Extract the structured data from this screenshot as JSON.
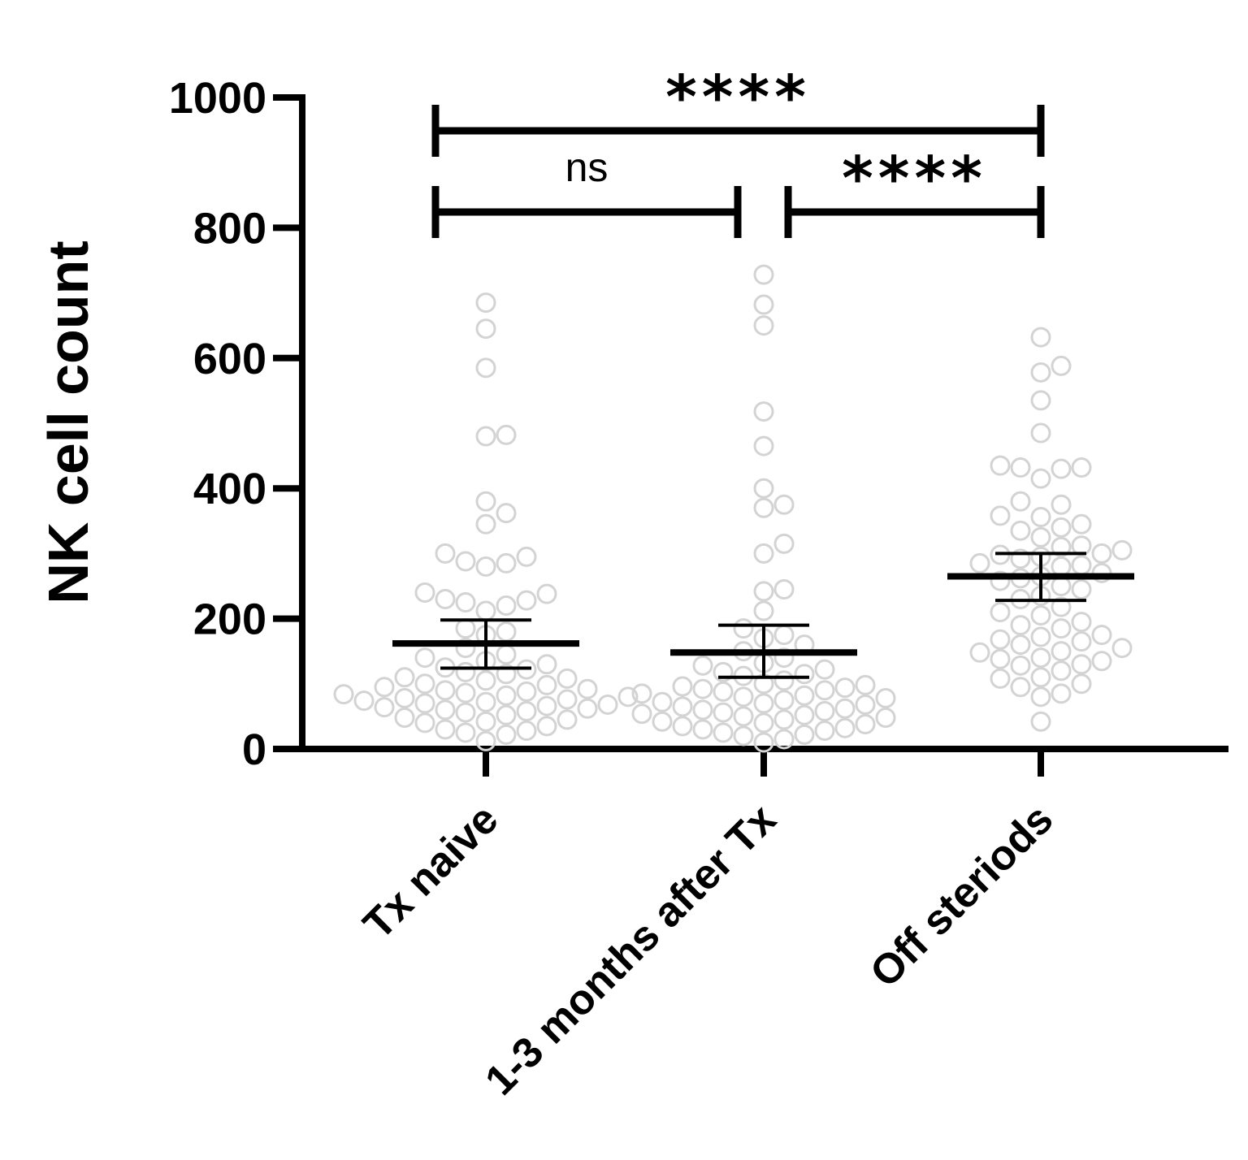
{
  "chart_data": {
    "type": "scatter",
    "ylabel": "NK cell count",
    "xlabel": "",
    "ylim": [
      0,
      1000
    ],
    "yticks": [
      0,
      200,
      400,
      600,
      800,
      1000
    ],
    "categories": [
      "Tx naive",
      "1-3 months after Tx",
      "Off steriods"
    ],
    "point_color": "#d3d3d3",
    "line_color": "#000000",
    "groups": [
      {
        "category": "Tx naive",
        "mean": 162,
        "ci": [
          124,
          198
        ],
        "points": [
          685,
          645,
          585,
          482,
          480,
          380,
          362,
          345,
          300,
          295,
          288,
          285,
          280,
          240,
          238,
          230,
          228,
          225,
          220,
          212,
          185,
          180,
          175,
          155,
          145,
          140,
          135,
          130,
          125,
          122,
          118,
          115,
          110,
          108,
          105,
          100,
          98,
          95,
          92,
          90,
          88,
          86,
          84,
          82,
          80,
          78,
          76,
          74,
          72,
          70,
          68,
          66,
          64,
          62,
          60,
          58,
          56,
          52,
          48,
          45,
          42,
          40,
          35,
          30,
          28,
          25,
          22,
          12
        ]
      },
      {
        "category": "1-3 months after Tx",
        "mean": 148,
        "ci": [
          110,
          190
        ],
        "points": [
          728,
          682,
          650,
          518,
          465,
          400,
          375,
          370,
          315,
          300,
          245,
          242,
          212,
          185,
          175,
          170,
          160,
          150,
          140,
          132,
          128,
          122,
          118,
          115,
          112,
          105,
          100,
          98,
          96,
          94,
          92,
          90,
          88,
          85,
          82,
          80,
          78,
          75,
          72,
          70,
          68,
          65,
          62,
          60,
          58,
          56,
          54,
          52,
          50,
          48,
          45,
          42,
          40,
          38,
          35,
          32,
          30,
          28,
          25,
          22,
          20,
          15,
          10
        ]
      },
      {
        "category": "Off steriods",
        "mean": 265,
        "ci": [
          228,
          300
        ],
        "points": [
          632,
          588,
          578,
          535,
          485,
          435,
          432,
          430,
          432,
          415,
          380,
          375,
          358,
          356,
          345,
          340,
          335,
          325,
          312,
          310,
          305,
          300,
          298,
          295,
          292,
          285,
          282,
          280,
          270,
          265,
          262,
          258,
          250,
          245,
          235,
          230,
          218,
          210,
          205,
          195,
          190,
          185,
          175,
          172,
          168,
          165,
          160,
          155,
          150,
          148,
          140,
          138,
          135,
          130,
          128,
          120,
          110,
          108,
          100,
          95,
          85,
          80,
          42
        ]
      }
    ],
    "comparisons": [
      {
        "from": 0,
        "to": 2,
        "label": "****",
        "level": 2
      },
      {
        "from": 0,
        "to": 1,
        "label": "ns",
        "level": 1
      },
      {
        "from": 1,
        "to": 2,
        "label": "****",
        "level": 1
      }
    ]
  }
}
